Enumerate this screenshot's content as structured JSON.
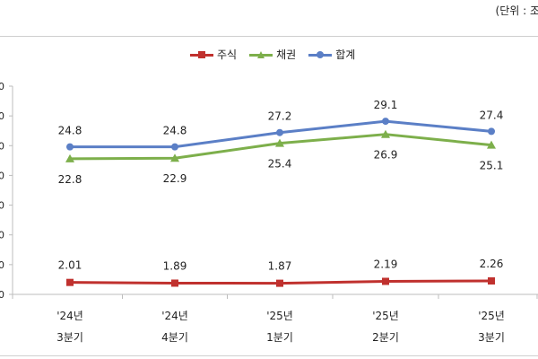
{
  "unit_note": "(단위 : 조",
  "chart_data": {
    "type": "line",
    "categories": [
      [
        "'24년",
        "3분기"
      ],
      [
        "'24년",
        "4분기"
      ],
      [
        "'25년",
        "1분기"
      ],
      [
        "'25년",
        "2분기"
      ],
      [
        "'25년",
        "3분기"
      ]
    ],
    "series": [
      {
        "name": "주식",
        "values": [
          2.01,
          1.89,
          1.87,
          2.19,
          2.26
        ],
        "color": "#c0312e",
        "marker": "square"
      },
      {
        "name": "채권",
        "values": [
          22.8,
          22.9,
          25.4,
          26.9,
          25.1
        ],
        "color": "#7daf4b",
        "marker": "triangle"
      },
      {
        "name": "합계",
        "values": [
          24.8,
          24.8,
          27.2,
          29.1,
          27.4
        ],
        "color": "#5b7fc6",
        "marker": "circle"
      }
    ],
    "ylim": [
      0,
      35
    ],
    "yticks": [
      0,
      5,
      10,
      15,
      20,
      25,
      30,
      35
    ],
    "ytick_labels": [
      "0",
      "0",
      "0",
      "0",
      "0",
      "0",
      "0",
      "0"
    ],
    "legend": "top-center",
    "grid": false
  }
}
